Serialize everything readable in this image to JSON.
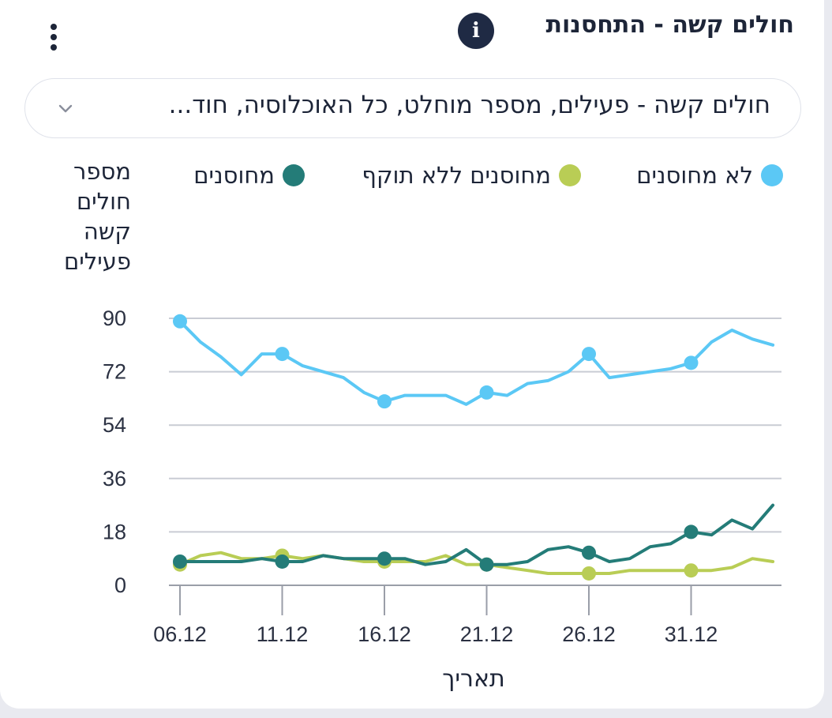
{
  "header": {
    "title": "חולים קשה - התחסנות",
    "info_icon": "info-icon",
    "menu_icon": "more-vertical-icon"
  },
  "dropdown": {
    "selected": "חולים קשה - פעילים, מספר מוחלט, כל האוכלוסיה, חוד...",
    "icon": "chevron-down-icon"
  },
  "colors": {
    "unvaccinated": "#5bc8f5",
    "expired": "#b9cd55",
    "vaccinated": "#247c78",
    "grid": "#c9ccd4",
    "axis": "#9a9ea8"
  },
  "chart_data": {
    "type": "line",
    "title": "",
    "ylabel": "מספר חולים קשה פעילים",
    "xlabel": "תאריך",
    "ylim": [
      0,
      90
    ],
    "yticks": [
      0,
      18,
      36,
      54,
      72,
      90
    ],
    "grid": true,
    "legend_position": "top",
    "x": [
      "06.12",
      "07.12",
      "08.12",
      "09.12",
      "10.12",
      "11.12",
      "12.12",
      "13.12",
      "14.12",
      "15.12",
      "16.12",
      "17.12",
      "18.12",
      "19.12",
      "20.12",
      "21.12",
      "22.12",
      "23.12",
      "24.12",
      "25.12",
      "26.12",
      "27.12",
      "28.12",
      "29.12",
      "30.12",
      "31.12",
      "01.01",
      "02.01",
      "03.01",
      "04.01"
    ],
    "xticks": [
      "06.12",
      "11.12",
      "16.12",
      "21.12",
      "26.12",
      "31.12"
    ],
    "series": [
      {
        "name": "לא מחוסנים",
        "color": "#5bc8f5",
        "values": [
          89,
          82,
          77,
          71,
          78,
          78,
          74,
          72,
          70,
          65,
          62,
          64,
          64,
          64,
          61,
          65,
          64,
          68,
          69,
          72,
          78,
          70,
          71,
          72,
          73,
          75,
          82,
          86,
          83,
          81
        ]
      },
      {
        "name": "מחוסנים ללא תוקף",
        "color": "#b9cd55",
        "values": [
          7,
          10,
          11,
          9,
          9,
          10,
          9,
          10,
          9,
          8,
          8,
          8,
          8,
          10,
          7,
          7,
          6,
          5,
          4,
          4,
          4,
          4,
          5,
          5,
          5,
          5,
          5,
          6,
          9,
          8
        ]
      },
      {
        "name": "מחוסנים",
        "color": "#247c78",
        "values": [
          8,
          8,
          8,
          8,
          9,
          8,
          8,
          10,
          9,
          9,
          9,
          9,
          7,
          8,
          12,
          7,
          7,
          8,
          12,
          13,
          11,
          8,
          9,
          13,
          14,
          18,
          17,
          22,
          19,
          27
        ]
      }
    ]
  }
}
